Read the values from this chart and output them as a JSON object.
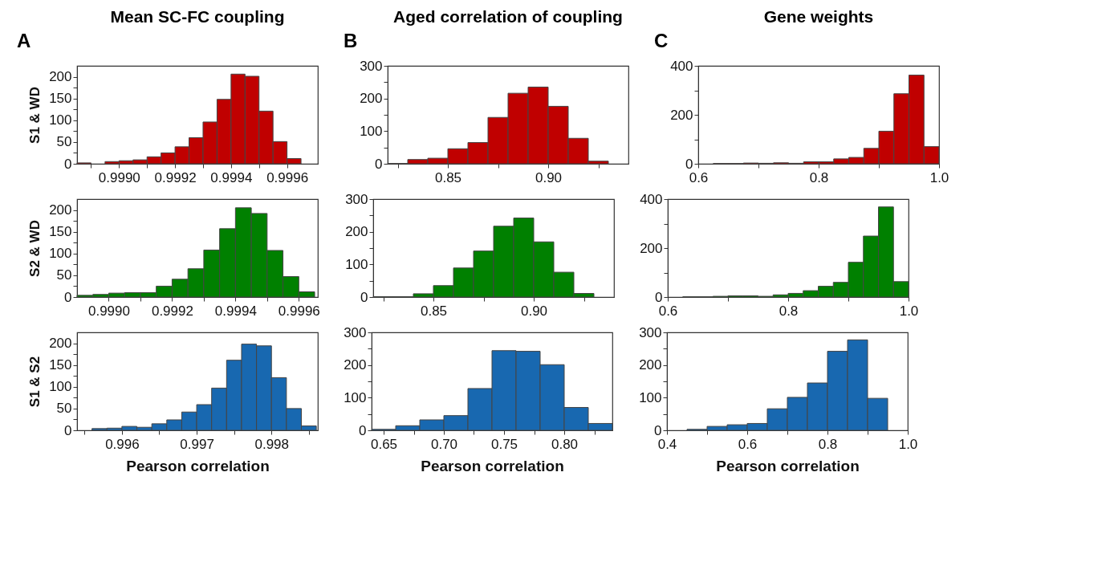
{
  "chart_data": [
    {
      "type": "histogram",
      "title": "Mean SC-FC coupling",
      "ylabel": "S1 & WD",
      "annotations": [
        "A"
      ],
      "color": "#c00000",
      "bins": [
        0.99885,
        0.9989,
        0.99895,
        0.999,
        0.99905,
        0.9991,
        0.99915,
        0.9992,
        0.99925,
        0.9993,
        0.99935,
        0.9994,
        0.99945,
        0.9995,
        0.99955,
        0.9996,
        0.99965
      ],
      "values": [
        2,
        0,
        5,
        7,
        9,
        16,
        25,
        39,
        60,
        96,
        148,
        206,
        201,
        121,
        51,
        12
      ],
      "xlim": [
        0.99885,
        0.99971
      ],
      "xticks": [
        {
          "value": 0.9989,
          "label": null
        },
        {
          "value": 0.999,
          "label": "0.9990"
        },
        {
          "value": 0.9991,
          "label": null
        },
        0.9992,
        {
          "value": 0.9993,
          "label": null
        },
        0.9994,
        {
          "value": 0.9995,
          "label": null
        },
        0.9996
      ],
      "ylim": [
        0,
        225
      ],
      "yticks": [
        0,
        {
          "value": 25,
          "label": null
        },
        50,
        {
          "value": 75,
          "label": null
        },
        100,
        {
          "value": 125,
          "label": null
        },
        150,
        {
          "value": 175,
          "label": null
        },
        200
      ]
    },
    {
      "type": "histogram",
      "title": "Aged correlation of coupling",
      "annotations": [
        "B"
      ],
      "color": "#c00000",
      "bins": [
        0.82,
        0.83,
        0.84,
        0.85,
        0.86,
        0.87,
        0.88,
        0.89,
        0.9,
        0.91,
        0.92,
        0.93
      ],
      "values": [
        1,
        13,
        17,
        46,
        65,
        142,
        216,
        235,
        176,
        78,
        8
      ],
      "xlim": [
        0.82,
        0.94
      ],
      "xticks": [
        {
          "value": 0.825,
          "label": null
        },
        0.85,
        {
          "value": 0.875,
          "label": null
        },
        {
          "value": 0.9,
          "label": "0.90"
        },
        {
          "value": 0.925,
          "label": null
        }
      ],
      "ylim": [
        0,
        300
      ],
      "yticks": [
        0,
        {
          "value": 50,
          "label": null
        },
        100,
        {
          "value": 150,
          "label": null
        },
        200,
        {
          "value": 250,
          "label": null
        },
        300
      ]
    },
    {
      "type": "histogram",
      "title": "Gene weights",
      "annotations": [
        "C"
      ],
      "color": "#c00000",
      "bins": [
        0.6,
        0.625,
        0.65,
        0.675,
        0.7,
        0.725,
        0.75,
        0.775,
        0.8,
        0.825,
        0.85,
        0.875,
        0.9,
        0.925,
        0.95,
        0.975,
        1.0
      ],
      "values": [
        0,
        1,
        1,
        3,
        2,
        4,
        2,
        8,
        8,
        20,
        26,
        63,
        133,
        286,
        362,
        70
      ],
      "xlim": [
        0.6,
        1.0
      ],
      "xticks": [
        0.6,
        {
          "value": 0.7,
          "label": null
        },
        0.8,
        {
          "value": 0.9,
          "label": null
        },
        {
          "value": 1.0,
          "label": "1.0"
        }
      ],
      "ylim": [
        0,
        400
      ],
      "yticks": [
        0,
        {
          "value": 100,
          "label": null
        },
        200,
        {
          "value": 300,
          "label": null
        },
        400
      ]
    },
    {
      "type": "histogram",
      "ylabel": "S2 & WD",
      "color": "#008000",
      "bins": [
        0.9989,
        0.99895,
        0.999,
        0.99905,
        0.9991,
        0.99915,
        0.9992,
        0.99925,
        0.9993,
        0.99935,
        0.9994,
        0.99945,
        0.9995,
        0.99955,
        0.9996,
        0.99965
      ],
      "values": [
        4,
        6,
        9,
        10,
        10,
        25,
        41,
        65,
        108,
        157,
        205,
        192,
        107,
        47,
        12
      ],
      "xlim": [
        0.9989,
        0.99966
      ],
      "xticks": [
        {
          "value": 0.999,
          "label": "0.9990"
        },
        {
          "value": 0.9991,
          "label": null
        },
        0.9992,
        {
          "value": 0.9993,
          "label": null
        },
        0.9994,
        {
          "value": 0.9995,
          "label": null
        },
        0.9996
      ],
      "ylim": [
        0,
        225
      ],
      "yticks": [
        0,
        {
          "value": 25,
          "label": null
        },
        50,
        {
          "value": 75,
          "label": null
        },
        100,
        {
          "value": 125,
          "label": null
        },
        150,
        {
          "value": 175,
          "label": null
        },
        200
      ]
    },
    {
      "type": "histogram",
      "color": "#008000",
      "bins": [
        0.82,
        0.83,
        0.84,
        0.85,
        0.86,
        0.87,
        0.88,
        0.89,
        0.9,
        0.91,
        0.92,
        0.93
      ],
      "values": [
        1,
        1,
        10,
        35,
        89,
        141,
        217,
        242,
        169,
        76,
        11
      ],
      "xlim": [
        0.82,
        0.94
      ],
      "xticks": [
        {
          "value": 0.825,
          "label": null
        },
        0.85,
        {
          "value": 0.875,
          "label": null
        },
        {
          "value": 0.9,
          "label": "0.90"
        },
        {
          "value": 0.925,
          "label": null
        }
      ],
      "ylim": [
        0,
        300
      ],
      "yticks": [
        0,
        {
          "value": 50,
          "label": null
        },
        100,
        {
          "value": 150,
          "label": null
        },
        200,
        {
          "value": 250,
          "label": null
        },
        300
      ]
    },
    {
      "type": "histogram",
      "color": "#008000",
      "bins": [
        0.6,
        0.625,
        0.65,
        0.675,
        0.7,
        0.725,
        0.75,
        0.775,
        0.8,
        0.825,
        0.85,
        0.875,
        0.9,
        0.925,
        0.95,
        0.975,
        1.0
      ],
      "values": [
        0,
        1,
        1,
        3,
        5,
        5,
        3,
        9,
        15,
        26,
        44,
        60,
        142,
        249,
        368,
        63
      ],
      "xlim": [
        0.6,
        1.0
      ],
      "xticks": [
        0.6,
        {
          "value": 0.7,
          "label": null
        },
        0.8,
        {
          "value": 0.9,
          "label": null
        },
        {
          "value": 1.0,
          "label": "1.0"
        }
      ],
      "ylim": [
        0,
        400
      ],
      "yticks": [
        0,
        {
          "value": 100,
          "label": null
        },
        200,
        {
          "value": 300,
          "label": null
        },
        400
      ]
    },
    {
      "type": "histogram",
      "ylabel": "S1 & S2",
      "xlabel": "Pearson correlation",
      "color": "#1868b0",
      "bins": [
        0.9956,
        0.9958,
        0.996,
        0.9962,
        0.9964,
        0.9966,
        0.9968,
        0.997,
        0.9972,
        0.9974,
        0.9976,
        0.9978,
        0.998,
        0.9982,
        0.9984,
        0.9986
      ],
      "values": [
        4,
        5,
        9,
        7,
        15,
        24,
        42,
        59,
        97,
        161,
        198,
        194,
        121,
        50,
        10
      ],
      "xlim": [
        0.9954,
        0.99862
      ],
      "xticks": [
        {
          "value": 0.9955,
          "label": null
        },
        0.996,
        {
          "value": 0.9965,
          "label": null
        },
        0.997,
        {
          "value": 0.9975,
          "label": null
        },
        0.998,
        {
          "value": 0.9985,
          "label": null
        }
      ],
      "ylim": [
        0,
        225
      ],
      "yticks": [
        0,
        {
          "value": 25,
          "label": null
        },
        50,
        {
          "value": 75,
          "label": null
        },
        100,
        {
          "value": 125,
          "label": null
        },
        150,
        {
          "value": 175,
          "label": null
        },
        200
      ]
    },
    {
      "type": "histogram",
      "xlabel": "Pearson correlation",
      "color": "#1868b0",
      "bins": [
        0.64,
        0.66,
        0.68,
        0.7,
        0.72,
        0.74,
        0.76,
        0.78,
        0.8,
        0.82,
        0.84
      ],
      "values": [
        3,
        14,
        32,
        45,
        128,
        244,
        242,
        201,
        70,
        21
      ],
      "xlim": [
        0.64,
        0.84
      ],
      "xticks": [
        0.65,
        {
          "value": 0.675,
          "label": null
        },
        {
          "value": 0.7,
          "label": "0.70"
        },
        {
          "value": 0.725,
          "label": null
        },
        0.75,
        {
          "value": 0.775,
          "label": null
        },
        {
          "value": 0.8,
          "label": "0.80"
        },
        {
          "value": 0.825,
          "label": null
        }
      ],
      "ylim": [
        0,
        300
      ],
      "yticks": [
        0,
        {
          "value": 50,
          "label": null
        },
        100,
        {
          "value": 150,
          "label": null
        },
        200,
        {
          "value": 250,
          "label": null
        },
        300
      ]
    },
    {
      "type": "histogram",
      "xlabel": "Pearson correlation",
      "color": "#1868b0",
      "bins": [
        0.4,
        0.45,
        0.5,
        0.55,
        0.6,
        0.65,
        0.7,
        0.75,
        0.8,
        0.85,
        0.9,
        0.95,
        1.0
      ],
      "values": [
        0,
        3,
        12,
        17,
        21,
        66,
        101,
        145,
        242,
        277,
        98,
        0
      ],
      "xlim": [
        0.4,
        1.0
      ],
      "xticks": [
        0.4,
        {
          "value": 0.5,
          "label": null
        },
        0.6,
        {
          "value": 0.7,
          "label": null
        },
        0.8,
        {
          "value": 0.9,
          "label": null
        },
        {
          "value": 1.0,
          "label": "1.0"
        }
      ],
      "ylim": [
        0,
        300
      ],
      "yticks": [
        0,
        {
          "value": 50,
          "label": null
        },
        100,
        {
          "value": 150,
          "label": null
        },
        200,
        {
          "value": 250,
          "label": null
        },
        300
      ]
    }
  ]
}
